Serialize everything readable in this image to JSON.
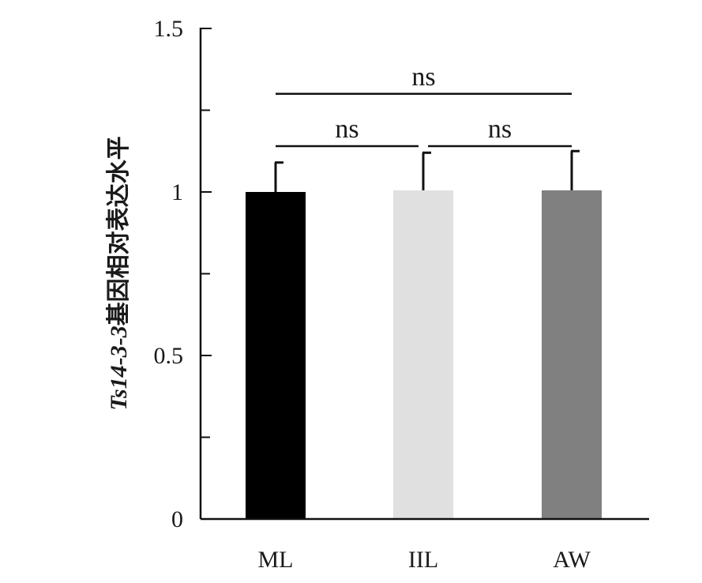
{
  "chart_data": {
    "type": "bar",
    "categories": [
      "ML",
      "IIL",
      "AW"
    ],
    "values": [
      1.0,
      1.005,
      1.005
    ],
    "errors": [
      0.09,
      0.115,
      0.12
    ],
    "bar_colors": [
      "#000000",
      "#e0e0e0",
      "#808080"
    ],
    "ylabel": {
      "italic_part": "Ts14-3-3",
      "plain_part": "基因相对表达水平"
    },
    "ylim": [
      0,
      1.5
    ],
    "yticks": [
      {
        "value": 0,
        "label": "0"
      },
      {
        "value": 0.5,
        "label": "0.5"
      },
      {
        "value": 1,
        "label": "1"
      },
      {
        "value": 1.5,
        "label": "1.5"
      }
    ],
    "minor_yticks": [
      0.25,
      0.75,
      1.25
    ],
    "grid": false,
    "comparisons": [
      {
        "from": "ML",
        "to": "AW",
        "label": "ns",
        "level": 1.3
      },
      {
        "from": "ML",
        "to": "IIL",
        "label": "ns",
        "level": 1.14
      },
      {
        "from": "IIL",
        "to": "AW",
        "label": "ns",
        "level": 1.14
      }
    ]
  }
}
